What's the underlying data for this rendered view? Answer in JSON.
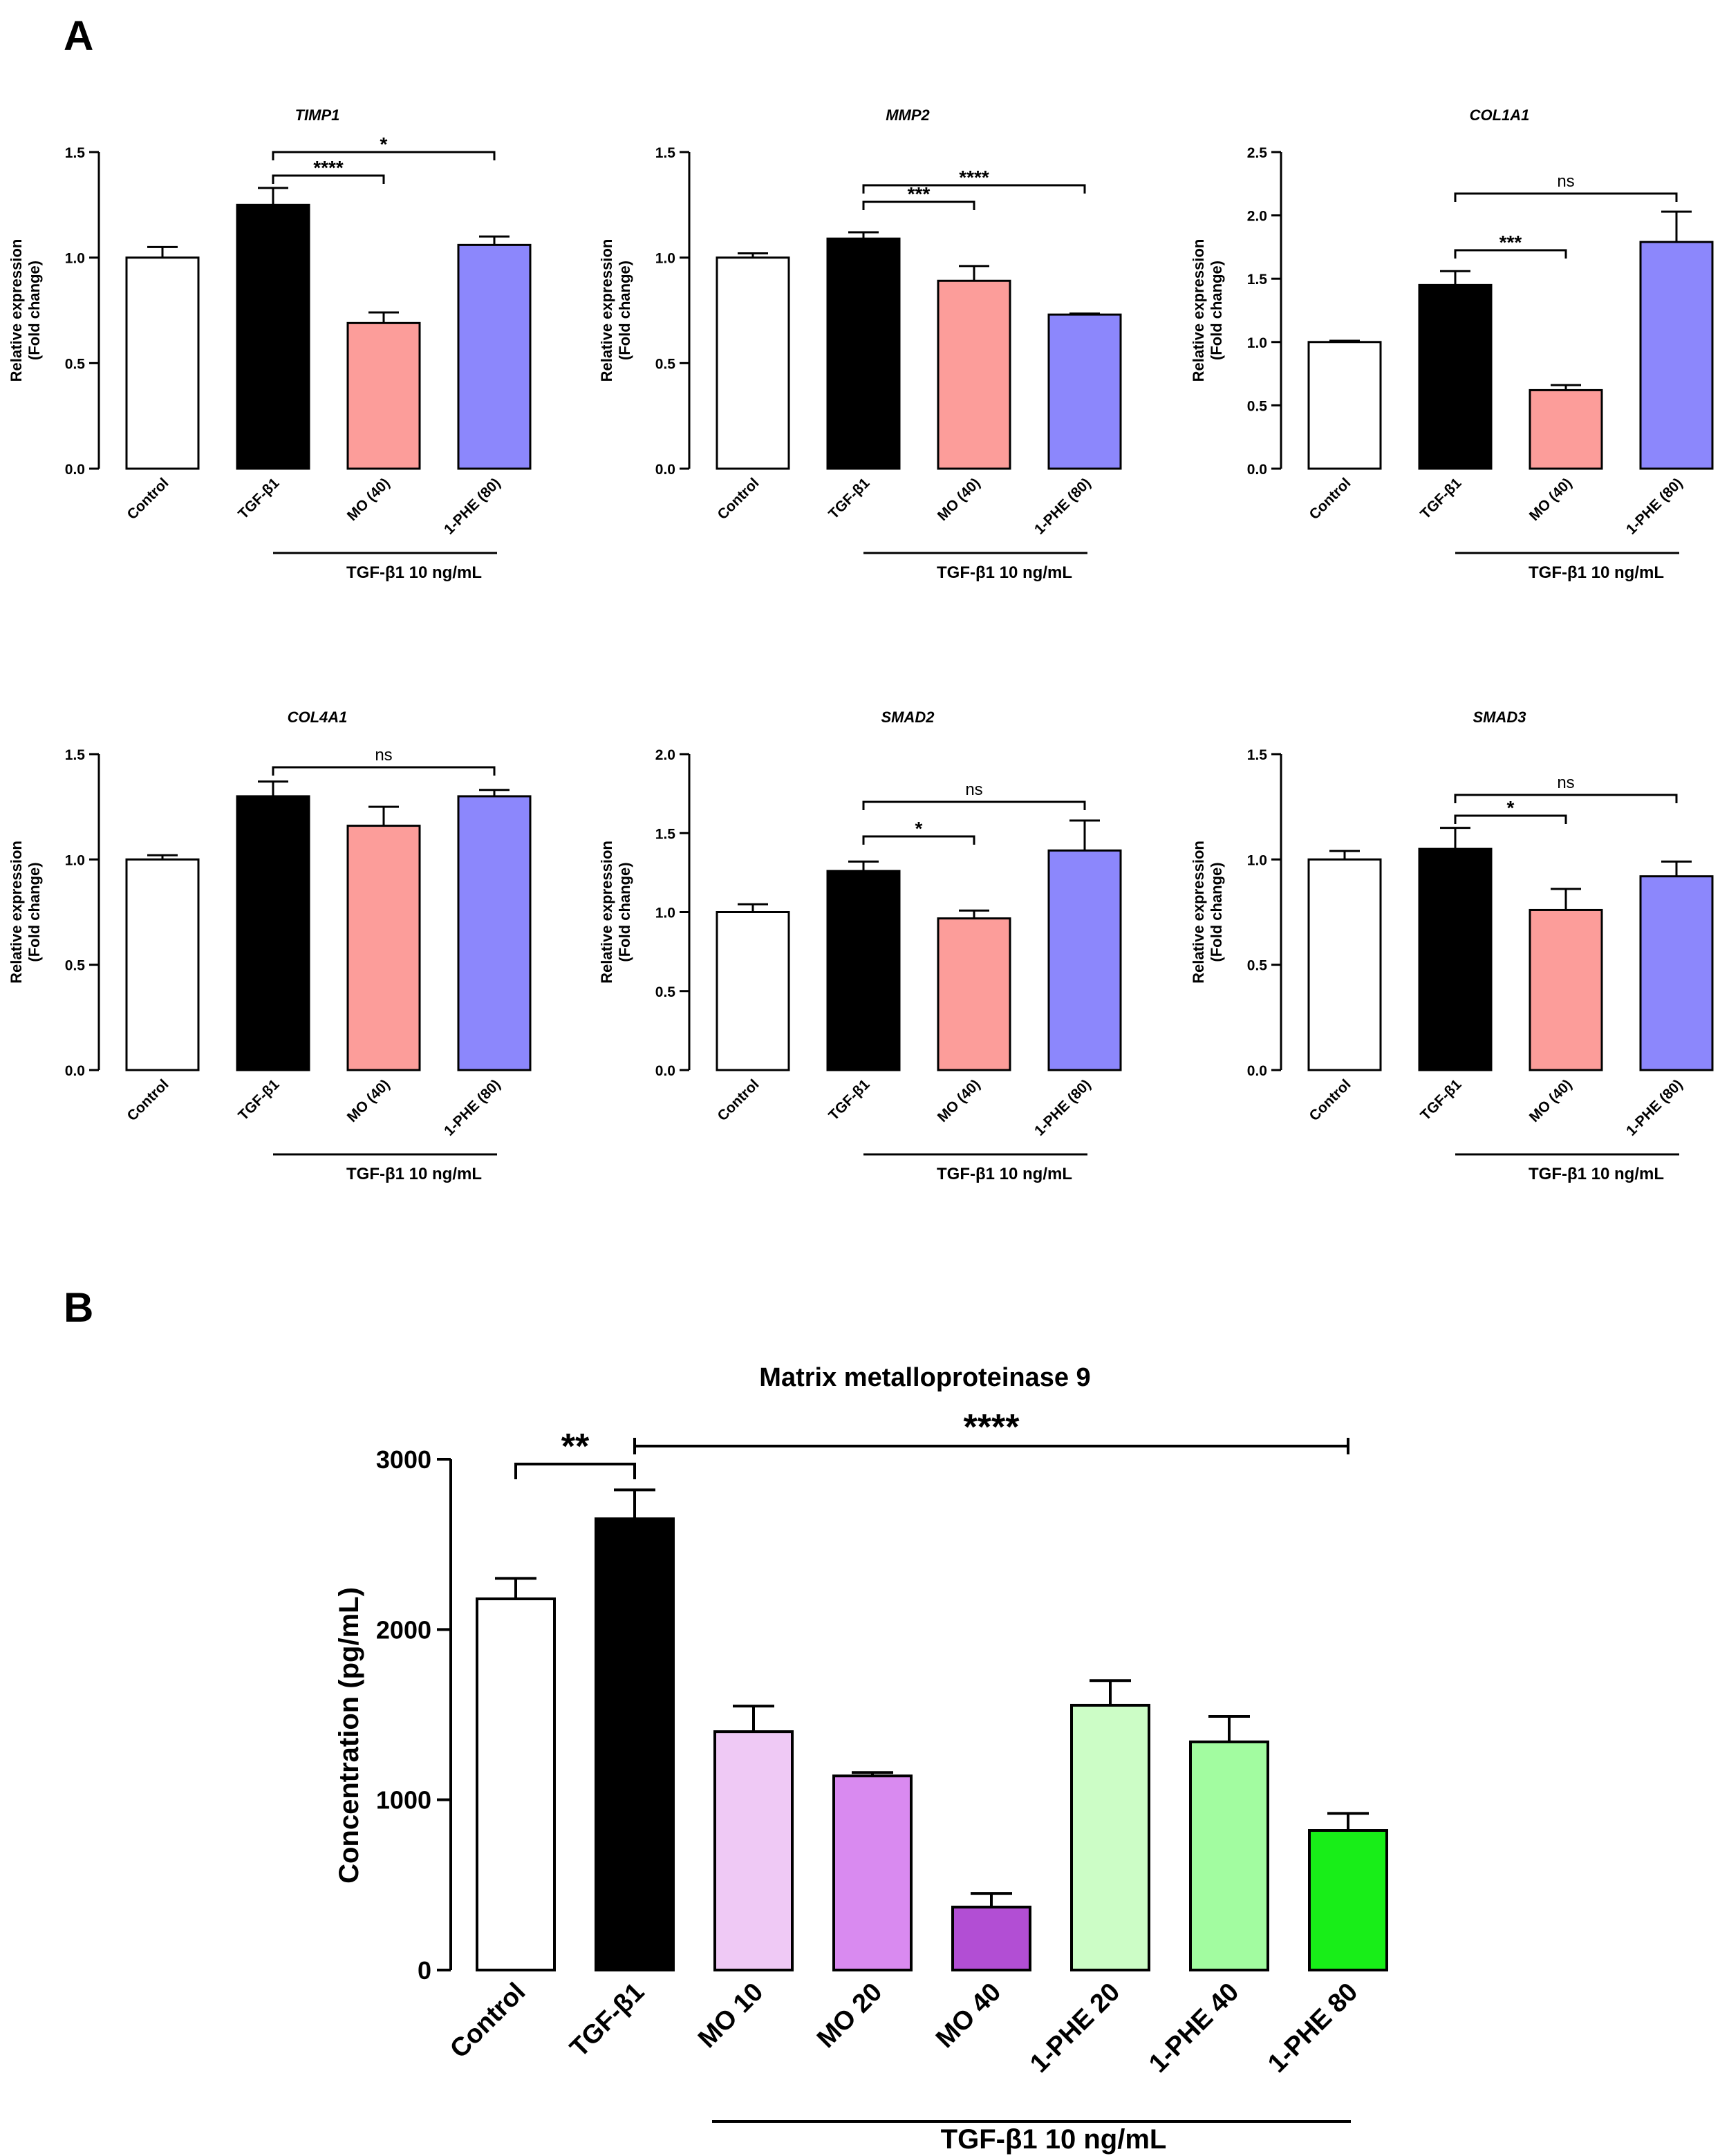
{
  "panel_labels": [
    "A",
    "B"
  ],
  "colors": {
    "control": "#ffffff",
    "tgf": "#000000",
    "mo40_pink": "#fc9d9a",
    "phe80_blue": "#8c87fc",
    "mo10": "#efc9f5",
    "mo20": "#d98af0",
    "mo40_purple": "#b24ed4",
    "phe20": "#ccfdc6",
    "phe40": "#a2fca0",
    "phe80_green": "#18ee18"
  },
  "chart_data": [
    {
      "type": "bar",
      "panel": "A",
      "title": "TIMP1",
      "ylabel": [
        "Relative expression",
        "(Fold change)"
      ],
      "categories": [
        "Control",
        "TGF-β1",
        "MO (40)",
        "1-PHE (80)"
      ],
      "values": [
        1.0,
        1.25,
        0.69,
        1.06
      ],
      "errors": [
        0.05,
        0.08,
        0.05,
        0.04
      ],
      "ylim": [
        0,
        1.5
      ],
      "yticks": [
        0,
        0.5,
        1.0,
        1.5
      ],
      "ytick_labels": [
        "0.0",
        "0.5",
        "1.0",
        "1.5"
      ],
      "treatment_label": "TGF-β1 10 ng/mL",
      "significance": [
        {
          "from": 1,
          "to": 2,
          "label": "****"
        },
        {
          "from": 1,
          "to": 3,
          "label": "*"
        }
      ]
    },
    {
      "type": "bar",
      "panel": "A",
      "title": "MMP2",
      "ylabel": [
        "Relative expression",
        "(Fold change)"
      ],
      "categories": [
        "Control",
        "TGF-β1",
        "MO (40)",
        "1-PHE (80)"
      ],
      "values": [
        1.0,
        1.09,
        0.89,
        0.73
      ],
      "errors": [
        0.02,
        0.03,
        0.07,
        0.005
      ],
      "ylim": [
        0,
        1.5
      ],
      "yticks": [
        0,
        0.5,
        1.0,
        1.5
      ],
      "ytick_labels": [
        "0.0",
        "0.5",
        "1.0",
        "1.5"
      ],
      "treatment_label": "TGF-β1 10 ng/mL",
      "significance": [
        {
          "from": 1,
          "to": 2,
          "label": "***"
        },
        {
          "from": 1,
          "to": 3,
          "label": "****"
        }
      ]
    },
    {
      "type": "bar",
      "panel": "A",
      "title": "COL1A1",
      "ylabel": [
        "Relative expression",
        "(Fold change)"
      ],
      "categories": [
        "Control",
        "TGF-β1",
        "MO (40)",
        "1-PHE (80)"
      ],
      "values": [
        1.0,
        1.45,
        0.62,
        1.79
      ],
      "errors": [
        0.01,
        0.11,
        0.04,
        0.24
      ],
      "ylim": [
        0,
        2.5
      ],
      "yticks": [
        0,
        0.5,
        1.0,
        1.5,
        2.0,
        2.5
      ],
      "ytick_labels": [
        "0.0",
        "0.5",
        "1.0",
        "1.5",
        "2.0",
        "2.5"
      ],
      "treatment_label": "TGF-β1 10 ng/mL",
      "significance": [
        {
          "from": 1,
          "to": 2,
          "label": "***"
        },
        {
          "from": 1,
          "to": 3,
          "label": "ns"
        }
      ]
    },
    {
      "type": "bar",
      "panel": "A",
      "title": "COL4A1",
      "ylabel": [
        "Relative expression",
        "(Fold change)"
      ],
      "categories": [
        "Control",
        "TGF-β1",
        "MO (40)",
        "1-PHE (80)"
      ],
      "values": [
        1.0,
        1.3,
        1.16,
        1.3
      ],
      "errors": [
        0.02,
        0.07,
        0.09,
        0.03
      ],
      "ylim": [
        0,
        1.5
      ],
      "yticks": [
        0,
        0.5,
        1.0,
        1.5
      ],
      "ytick_labels": [
        "0.0",
        "0.5",
        "1.0",
        "1.5"
      ],
      "treatment_label": "TGF-β1 10 ng/mL",
      "significance": [
        {
          "from": 1,
          "to": 3,
          "label": "ns"
        }
      ]
    },
    {
      "type": "bar",
      "panel": "A",
      "title": "SMAD2",
      "ylabel": [
        "Relative expression",
        "(Fold change)"
      ],
      "categories": [
        "Control",
        "TGF-β1",
        "MO (40)",
        "1-PHE (80)"
      ],
      "values": [
        1.0,
        1.26,
        0.96,
        1.39
      ],
      "errors": [
        0.05,
        0.06,
        0.05,
        0.19
      ],
      "ylim": [
        0,
        2.0
      ],
      "yticks": [
        0,
        0.5,
        1.0,
        1.5,
        2.0
      ],
      "ytick_labels": [
        "0.0",
        "0.5",
        "1.0",
        "1.5",
        "2.0"
      ],
      "treatment_label": "TGF-β1 10 ng/mL",
      "significance": [
        {
          "from": 1,
          "to": 2,
          "label": "*"
        },
        {
          "from": 1,
          "to": 3,
          "label": "ns"
        }
      ]
    },
    {
      "type": "bar",
      "panel": "A",
      "title": "SMAD3",
      "ylabel": [
        "Relative expression",
        "(Fold change)"
      ],
      "categories": [
        "Control",
        "TGF-β1",
        "MO (40)",
        "1-PHE (80)"
      ],
      "values": [
        1.0,
        1.05,
        0.76,
        0.92
      ],
      "errors": [
        0.04,
        0.1,
        0.1,
        0.07
      ],
      "ylim": [
        0,
        1.5
      ],
      "yticks": [
        0,
        0.5,
        1.0,
        1.5
      ],
      "ytick_labels": [
        "0.0",
        "0.5",
        "1.0",
        "1.5"
      ],
      "treatment_label": "TGF-β1 10 ng/mL",
      "significance": [
        {
          "from": 1,
          "to": 2,
          "label": "*"
        },
        {
          "from": 1,
          "to": 3,
          "label": "ns"
        }
      ]
    },
    {
      "type": "bar",
      "panel": "B",
      "title": "Matrix metalloproteinase 9",
      "ylabel": [
        "Concentration (pg/mL)"
      ],
      "categories": [
        "Control",
        "TGF-β1",
        "MO 10",
        "MO 20",
        "MO 40",
        "1-PHE 20",
        "1-PHE 40",
        "1-PHE 80"
      ],
      "values": [
        2180,
        2650,
        1400,
        1140,
        370,
        1555,
        1340,
        820
      ],
      "errors": [
        120,
        170,
        150,
        20,
        80,
        145,
        150,
        100
      ],
      "ylim": [
        0,
        3000
      ],
      "yticks": [
        0,
        1000,
        2000,
        3000
      ],
      "ytick_labels": [
        "0",
        "1000",
        "2000",
        "3000"
      ],
      "treatment_label": "TGF-β1 10 ng/mL",
      "significance": [
        {
          "from": 0,
          "to": 1,
          "label": "**"
        },
        {
          "from": 1,
          "to": 7,
          "label": "****"
        }
      ]
    }
  ]
}
